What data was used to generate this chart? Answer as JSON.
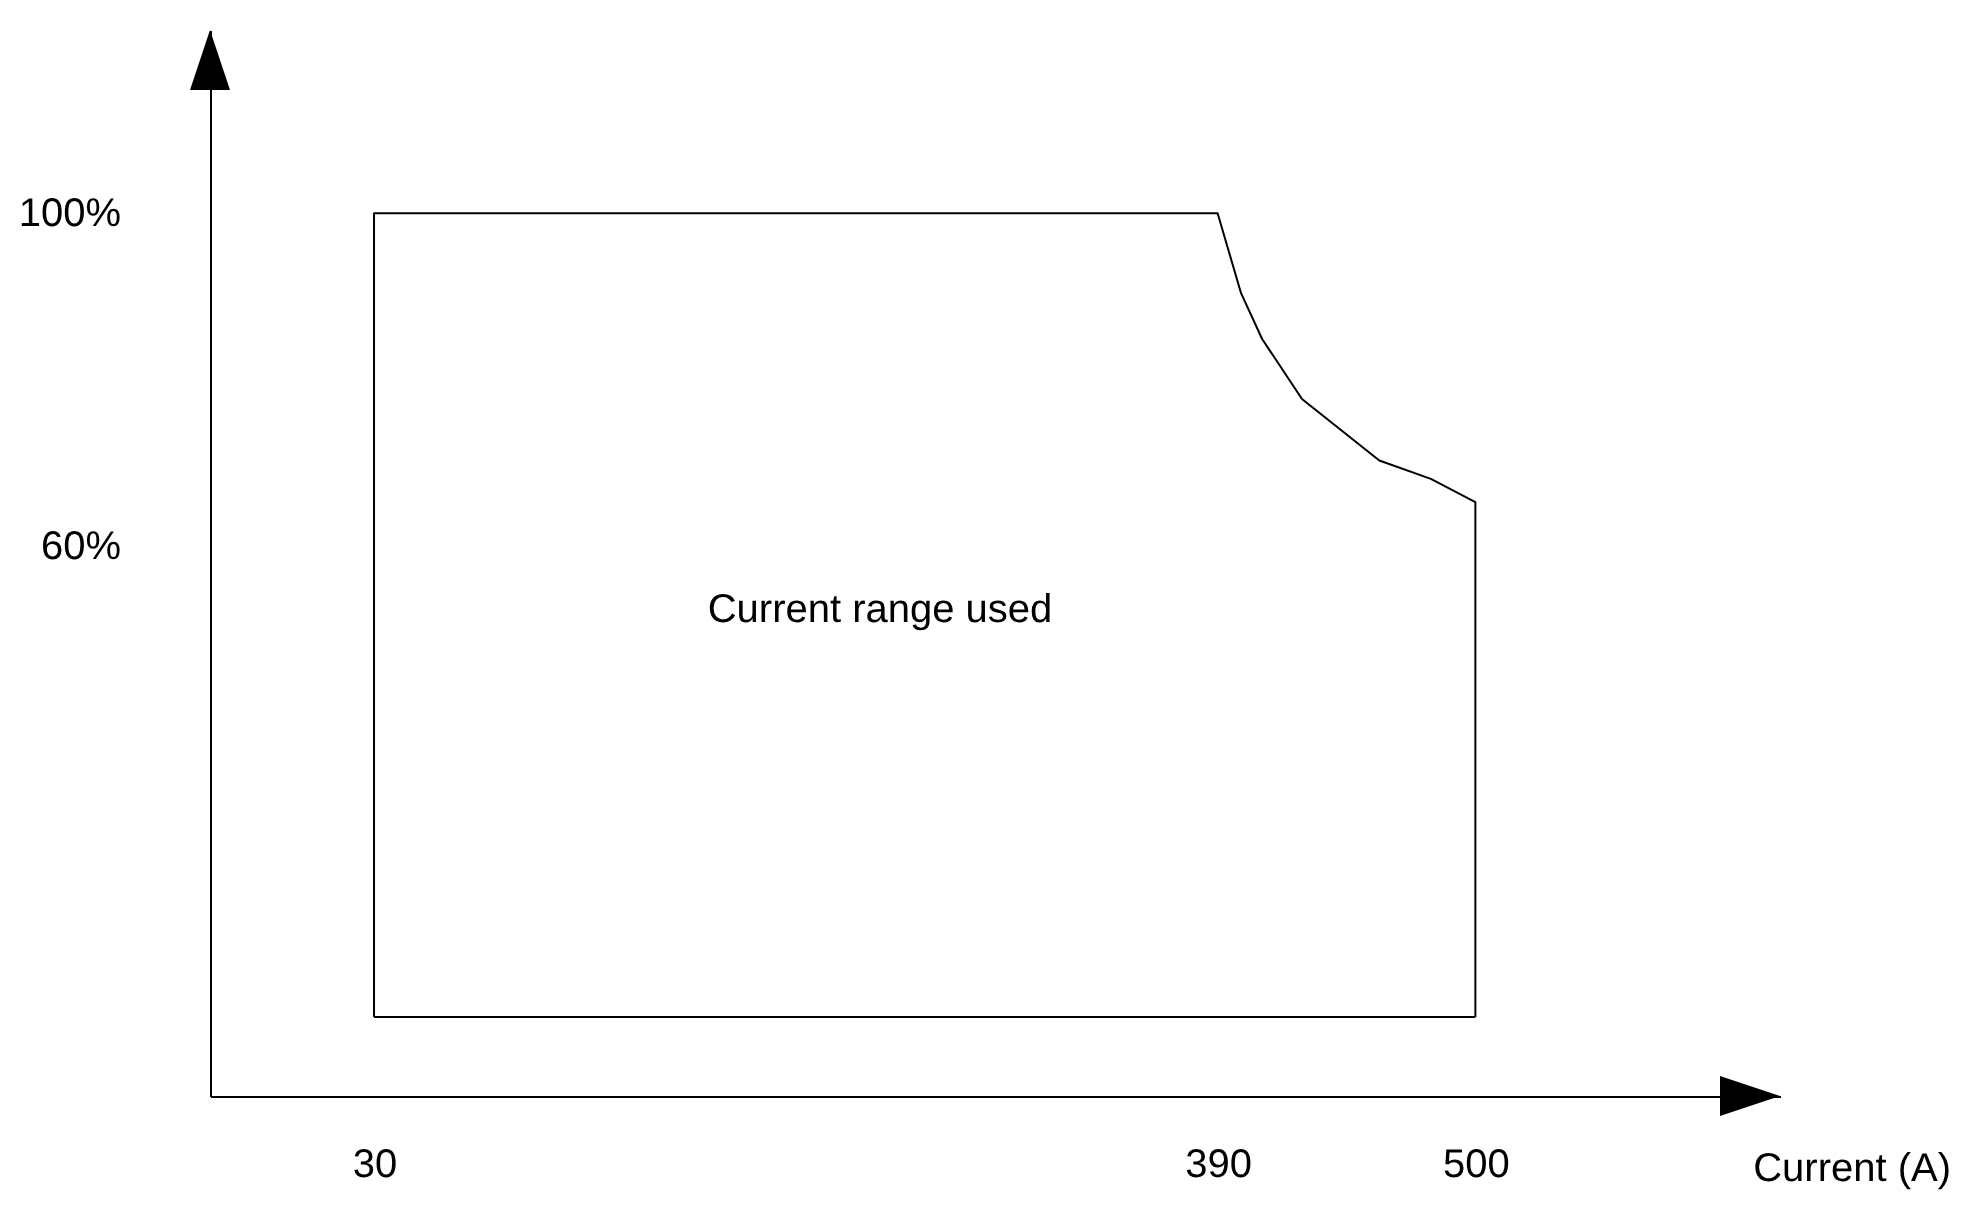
{
  "chart_data": {
    "type": "line",
    "xlabel": "Current (A)",
    "x": [
      30,
      30,
      390,
      400,
      409,
      426,
      459,
      481,
      500,
      500
    ],
    "series": [
      {
        "color": "#000000",
        "values": [
          3.5,
          100,
          100,
          90.4,
          84.9,
          77.7,
          70.3,
          68.1,
          65.3,
          3.5
        ]
      },
      {
        "color": "#000000",
        "x": [
          30,
          500
        ],
        "values": [
          3.5,
          3.5
        ]
      }
    ],
    "xlim": [
      -40,
      630
    ],
    "xticks": [
      30,
      390,
      500
    ],
    "ylim": [
      -6,
      122
    ],
    "yticks": [
      {
        "value": 100,
        "label": "100%"
      },
      {
        "value": 60,
        "label": "60%"
      }
    ],
    "annotations": [
      "Current range used"
    ]
  }
}
